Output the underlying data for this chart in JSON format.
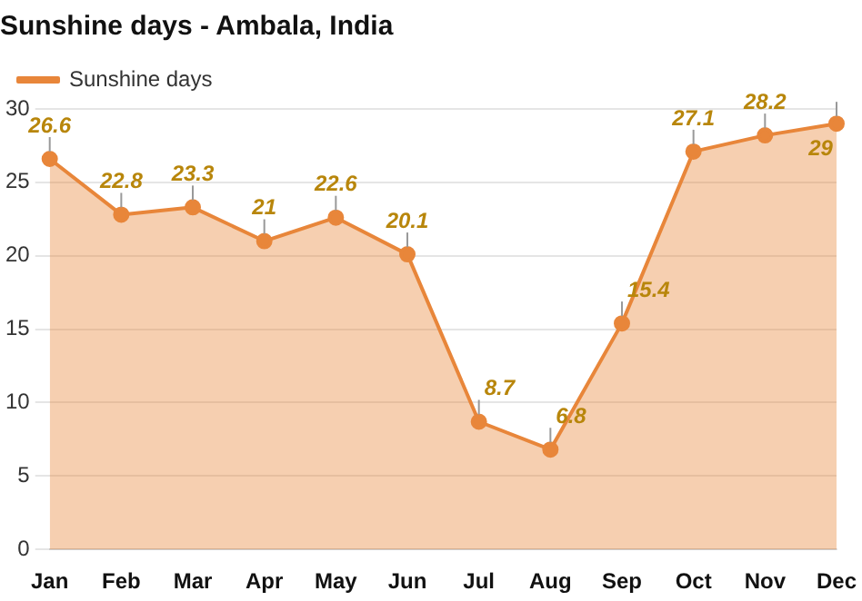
{
  "chart_data": {
    "type": "area",
    "title": "Sunshine days - Ambala, India",
    "categories": [
      "Jan",
      "Feb",
      "Mar",
      "Apr",
      "May",
      "Jun",
      "Jul",
      "Aug",
      "Sep",
      "Oct",
      "Nov",
      "Dec"
    ],
    "series": [
      {
        "name": "Sunshine days",
        "color": "#e8863a",
        "values": [
          26.6,
          22.8,
          23.3,
          21,
          22.6,
          20.1,
          8.7,
          6.8,
          15.4,
          27.1,
          28.2,
          29
        ]
      }
    ],
    "ylim": [
      0,
      30
    ],
    "yticks": [
      0,
      5,
      10,
      15,
      20,
      25,
      30
    ],
    "grid": "y",
    "legend": "top left",
    "marker": "circle",
    "data_labels": true
  }
}
